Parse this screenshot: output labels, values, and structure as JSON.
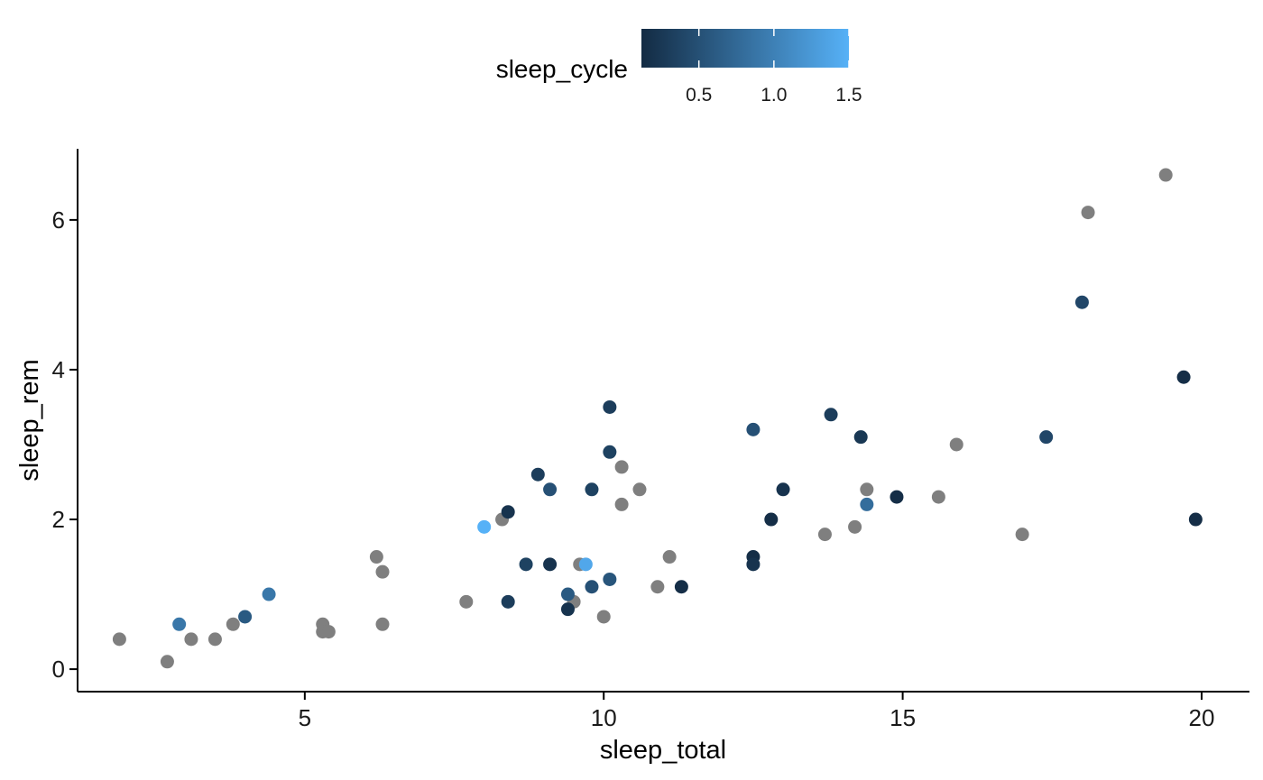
{
  "chart_data": {
    "type": "scatter",
    "title": "",
    "xlabel": "sleep_total",
    "ylabel": "sleep_rem",
    "xlim": [
      1.2,
      20.8
    ],
    "ylim": [
      -0.3,
      6.95
    ],
    "x_ticks": [
      5,
      10,
      15,
      20
    ],
    "x_tick_labels": [
      "5",
      "10",
      "15",
      "20"
    ],
    "y_ticks": [
      0,
      2,
      4,
      6
    ],
    "y_tick_labels": [
      "0",
      "2",
      "4",
      "6"
    ],
    "grid": false,
    "legend": {
      "title": "sleep_cycle",
      "placement": "top",
      "type": "colorbar",
      "range": [
        0.117,
        1.5
      ],
      "ticks": [
        0.5,
        1.0,
        1.5
      ],
      "tick_labels": [
        "0.5",
        "1.0",
        "1.5"
      ],
      "low_color": "#132b43",
      "high_color": "#56b1f7",
      "na_color": "#7f7f7f"
    },
    "points": [
      {
        "x": 2.9,
        "y": 0.6,
        "c": 0.9
      },
      {
        "x": 4.0,
        "y": 0.7,
        "c": 0.6
      },
      {
        "x": 4.4,
        "y": 1.0,
        "c": 0.9
      },
      {
        "x": 8.0,
        "y": 1.9,
        "c": 1.5
      },
      {
        "x": 8.4,
        "y": 2.1,
        "c": 0.2
      },
      {
        "x": 8.4,
        "y": 0.9,
        "c": 0.3
      },
      {
        "x": 8.7,
        "y": 1.4,
        "c": 0.35
      },
      {
        "x": 8.9,
        "y": 2.6,
        "c": 0.3
      },
      {
        "x": 9.1,
        "y": 2.4,
        "c": 0.5
      },
      {
        "x": 9.1,
        "y": 1.4,
        "c": 0.2
      },
      {
        "x": 9.4,
        "y": 0.8,
        "c": 0.2
      },
      {
        "x": 9.4,
        "y": 1.0,
        "c": 0.6
      },
      {
        "x": 9.7,
        "y": 1.4,
        "c": 1.4
      },
      {
        "x": 9.8,
        "y": 2.4,
        "c": 0.35
      },
      {
        "x": 9.8,
        "y": 1.1,
        "c": 0.5
      },
      {
        "x": 10.1,
        "y": 3.5,
        "c": 0.3
      },
      {
        "x": 10.1,
        "y": 2.9,
        "c": 0.35
      },
      {
        "x": 10.1,
        "y": 1.2,
        "c": 0.55
      },
      {
        "x": 11.3,
        "y": 1.1,
        "c": 0.15
      },
      {
        "x": 12.5,
        "y": 3.2,
        "c": 0.5
      },
      {
        "x": 12.5,
        "y": 1.5,
        "c": 0.15
      },
      {
        "x": 12.5,
        "y": 1.4,
        "c": 0.2
      },
      {
        "x": 12.8,
        "y": 2.0,
        "c": 0.15
      },
      {
        "x": 13.0,
        "y": 2.4,
        "c": 0.2
      },
      {
        "x": 13.8,
        "y": 3.4,
        "c": 0.3
      },
      {
        "x": 14.3,
        "y": 3.1,
        "c": 0.25
      },
      {
        "x": 14.4,
        "y": 2.2,
        "c": 0.8
      },
      {
        "x": 14.9,
        "y": 2.3,
        "c": 0.15
      },
      {
        "x": 17.4,
        "y": 3.1,
        "c": 0.4
      },
      {
        "x": 18.0,
        "y": 4.9,
        "c": 0.4
      },
      {
        "x": 19.7,
        "y": 3.9,
        "c": 0.15
      },
      {
        "x": 19.9,
        "y": 2.0,
        "c": 0.15
      },
      {
        "x": 1.9,
        "y": 0.4,
        "c": null
      },
      {
        "x": 2.7,
        "y": 0.1,
        "c": null
      },
      {
        "x": 3.1,
        "y": 0.4,
        "c": null
      },
      {
        "x": 3.5,
        "y": 0.4,
        "c": null
      },
      {
        "x": 3.8,
        "y": 0.6,
        "c": null
      },
      {
        "x": 5.3,
        "y": 0.6,
        "c": null
      },
      {
        "x": 5.3,
        "y": 0.5,
        "c": null
      },
      {
        "x": 5.4,
        "y": 0.5,
        "c": null
      },
      {
        "x": 6.2,
        "y": 1.5,
        "c": null
      },
      {
        "x": 6.3,
        "y": 1.3,
        "c": null
      },
      {
        "x": 6.3,
        "y": 0.6,
        "c": null
      },
      {
        "x": 7.7,
        "y": 0.9,
        "c": null
      },
      {
        "x": 8.3,
        "y": 2.0,
        "c": null
      },
      {
        "x": 9.5,
        "y": 0.9,
        "c": null
      },
      {
        "x": 9.6,
        "y": 1.4,
        "c": null
      },
      {
        "x": 10.0,
        "y": 0.7,
        "c": null
      },
      {
        "x": 10.3,
        "y": 2.7,
        "c": null
      },
      {
        "x": 10.3,
        "y": 2.2,
        "c": null
      },
      {
        "x": 10.6,
        "y": 2.4,
        "c": null
      },
      {
        "x": 10.9,
        "y": 1.1,
        "c": null
      },
      {
        "x": 11.1,
        "y": 1.5,
        "c": null
      },
      {
        "x": 13.7,
        "y": 1.8,
        "c": null
      },
      {
        "x": 14.2,
        "y": 1.9,
        "c": null
      },
      {
        "x": 14.4,
        "y": 2.4,
        "c": null
      },
      {
        "x": 15.6,
        "y": 2.3,
        "c": null
      },
      {
        "x": 15.9,
        "y": 3.0,
        "c": null
      },
      {
        "x": 17.0,
        "y": 1.8,
        "c": null
      },
      {
        "x": 18.1,
        "y": 6.1,
        "c": null
      },
      {
        "x": 19.4,
        "y": 6.6,
        "c": null
      }
    ]
  }
}
